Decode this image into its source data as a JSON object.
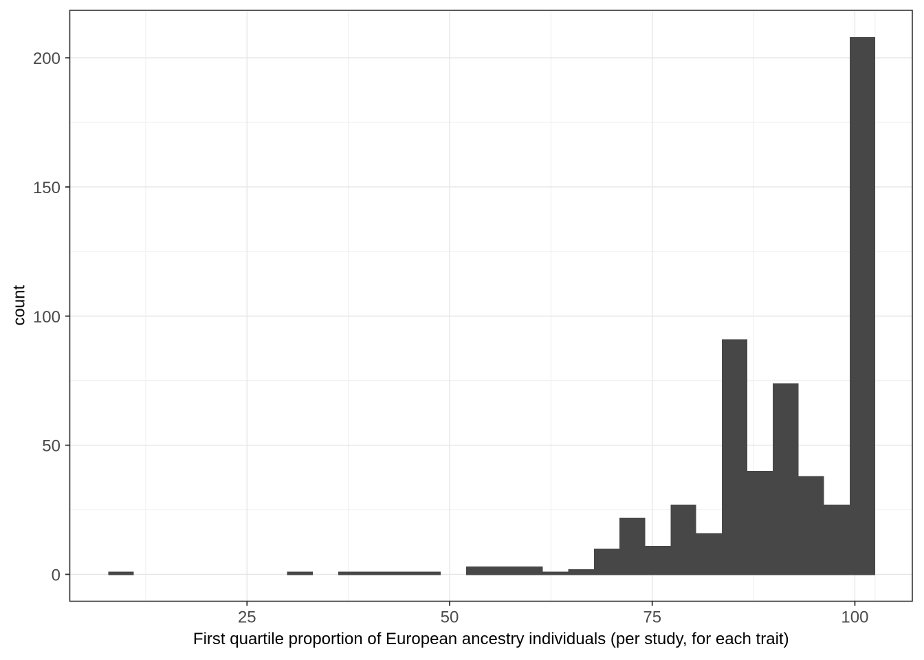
{
  "chart_data": {
    "type": "bar",
    "subtype": "histogram",
    "title": "",
    "xlabel": "First quartile proportion of European ancestry individuals (per study, for each trait)",
    "ylabel": "count",
    "bin_start": 7.86,
    "bin_width": 3.155,
    "counts": [
      1,
      0,
      0,
      0,
      0,
      0,
      0,
      1,
      0,
      1,
      1,
      1,
      1,
      0,
      3,
      3,
      3,
      1,
      2,
      10,
      22,
      11,
      27,
      16,
      91,
      40,
      74,
      38,
      27,
      208
    ],
    "x_ticks_major": [
      25,
      50,
      75,
      100
    ],
    "x_ticks_minor": [
      12.5,
      37.5,
      62.5,
      87.5,
      102.5
    ],
    "y_ticks_major": [
      0,
      50,
      100,
      150,
      200
    ],
    "y_ticks_minor": [
      25,
      75,
      125,
      175
    ],
    "x_tick_labels": [
      "25",
      "50",
      "75",
      "100"
    ],
    "y_tick_labels": [
      "0",
      "50",
      "100",
      "150",
      "200"
    ],
    "xlim": [
      3.13,
      107.09
    ],
    "ylim": [
      -10.4,
      218.4
    ],
    "grid": "major-and-minor",
    "legend": false,
    "colors": {
      "bar_fill": "#474747",
      "panel_background": "#ffffff",
      "grid_major": "#e6e6e6",
      "grid_minor": "#f1f1f1",
      "panel_border": "#333333",
      "tick_mark": "#333333",
      "tick_label": "#4a4a4a",
      "axis_title": "#000000"
    }
  }
}
